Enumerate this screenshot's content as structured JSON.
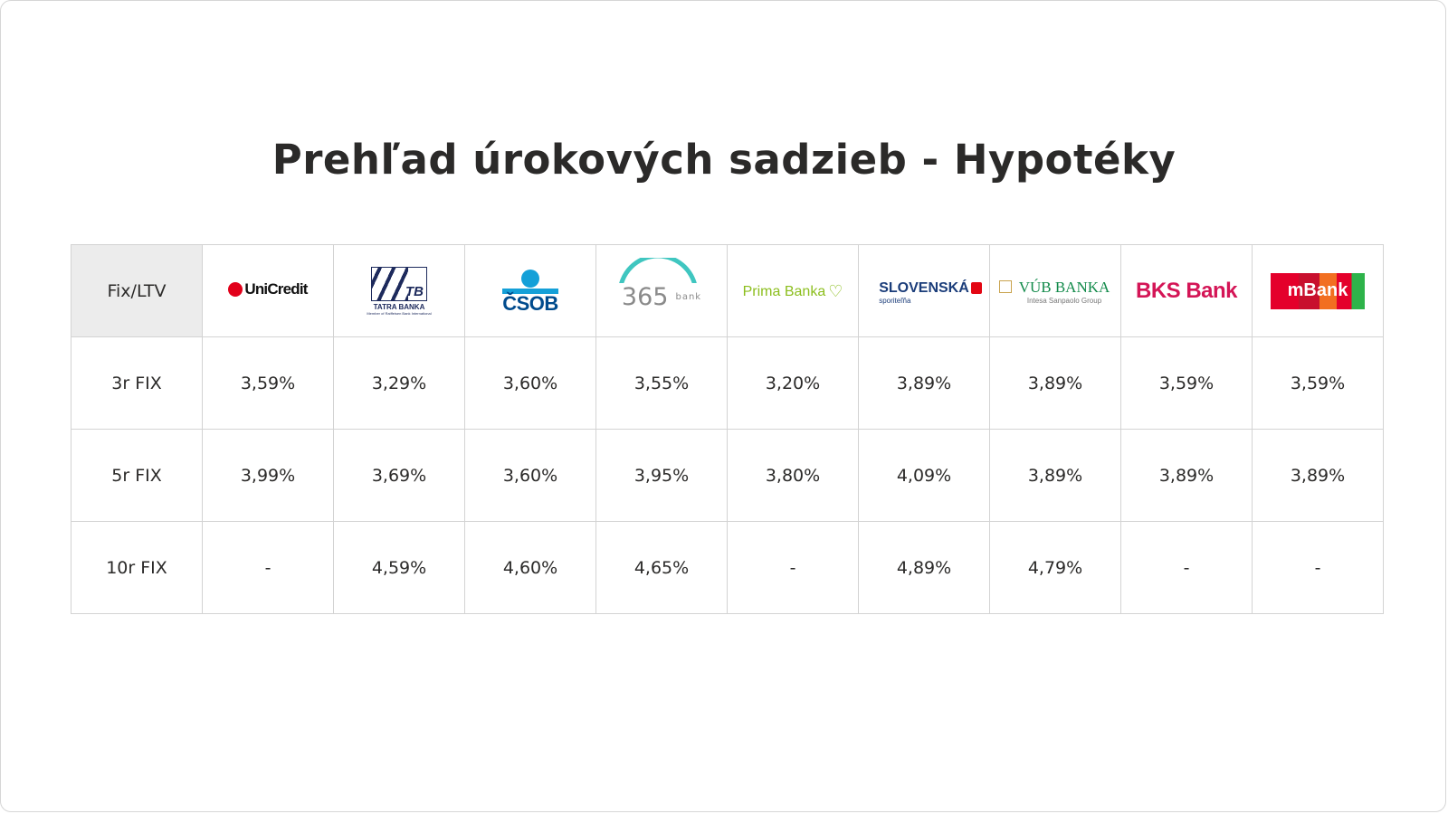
{
  "title": "Prehľad úrokových sadzieb - Hypotéky",
  "table": {
    "corner": "Fix/LTV",
    "banks": [
      {
        "name": "UniCredit"
      },
      {
        "mark": "TB",
        "name": "TATRA BANKA",
        "note": "Member of Raiffeisen Bank International"
      },
      {
        "name": "ČSOB"
      },
      {
        "name": "365",
        "sub": "bank"
      },
      {
        "name": "Prima Banka"
      },
      {
        "name": "SLOVENSKÁ",
        "sub": "sporiteľňa"
      },
      {
        "name": "VÚB BANKA",
        "sub": "Intesa Sanpaolo Group"
      },
      {
        "name": "BKS Bank"
      },
      {
        "name": "mBank"
      }
    ],
    "rows": [
      [
        "3r FIX",
        "3,59%",
        "3,29%",
        "3,60%",
        "3,55%",
        "3,20%",
        "3,89%",
        "3,89%",
        "3,59%",
        "3,59%"
      ],
      [
        "5r FIX",
        "3,99%",
        "3,69%",
        "3,60%",
        "3,95%",
        "3,80%",
        "4,09%",
        "3,89%",
        "3,89%",
        "3,89%"
      ],
      [
        "10r FIX",
        "-",
        "4,59%",
        "4,60%",
        "4,65%",
        "-",
        "4,89%",
        "4,79%",
        "-",
        "-"
      ]
    ]
  }
}
